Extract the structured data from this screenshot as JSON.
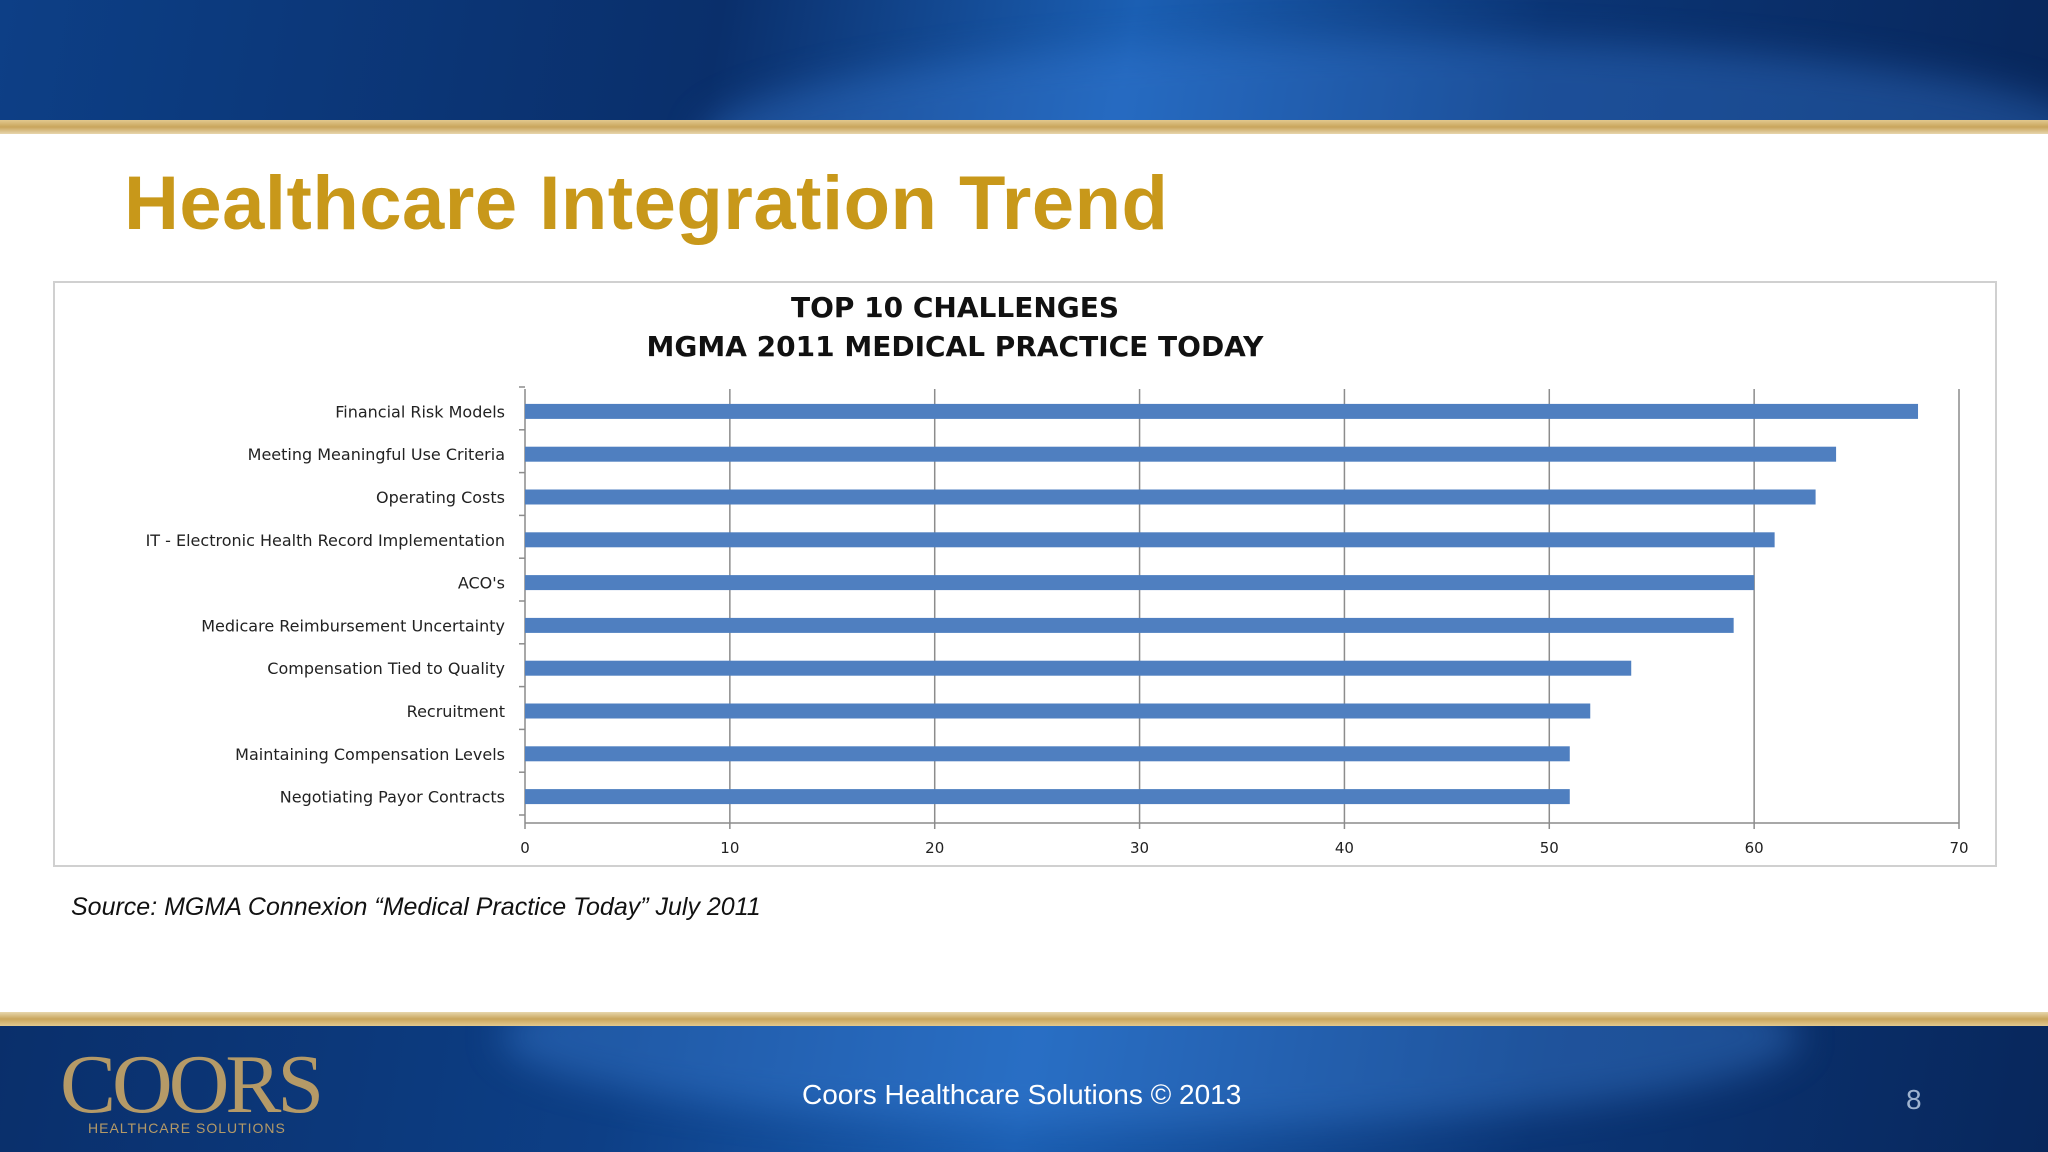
{
  "slide": {
    "title": "Healthcare Integration Trend",
    "source": "Source: MGMA Connexion “Medical Practice Today” July 2011",
    "footer": "Coors Healthcare Solutions © 2013",
    "page_number": "8",
    "logo": {
      "word": "COORS",
      "subtitle": "HEALTHCARE SOLUTIONS"
    }
  },
  "chart_data": {
    "type": "bar",
    "orientation": "horizontal",
    "title": [
      "TOP 10 CHALLENGES",
      "MGMA 2011 MEDICAL PRACTICE TODAY"
    ],
    "categories": [
      "Financial Risk Models",
      "Meeting Meaningful Use Criteria",
      "Operating Costs",
      "IT - Electronic Health Record Implementation",
      "ACO's",
      "Medicare Reimbursement Uncertainty",
      "Compensation Tied to Quality",
      "Recruitment",
      "Maintaining Compensation Levels",
      "Negotiating Payor Contracts"
    ],
    "values": [
      68,
      64,
      63,
      61,
      60,
      59,
      54,
      52,
      51,
      51
    ],
    "xlim": [
      0,
      70
    ],
    "xticks": [
      0,
      10,
      20,
      30,
      40,
      50,
      60,
      70
    ],
    "grid": true,
    "bar_color": "#4f7fc0",
    "legend": "none"
  },
  "colors": {
    "title_gold": "#c8981a",
    "band_blue": "#0d3f86",
    "rule_gold": "#c9a55c"
  }
}
